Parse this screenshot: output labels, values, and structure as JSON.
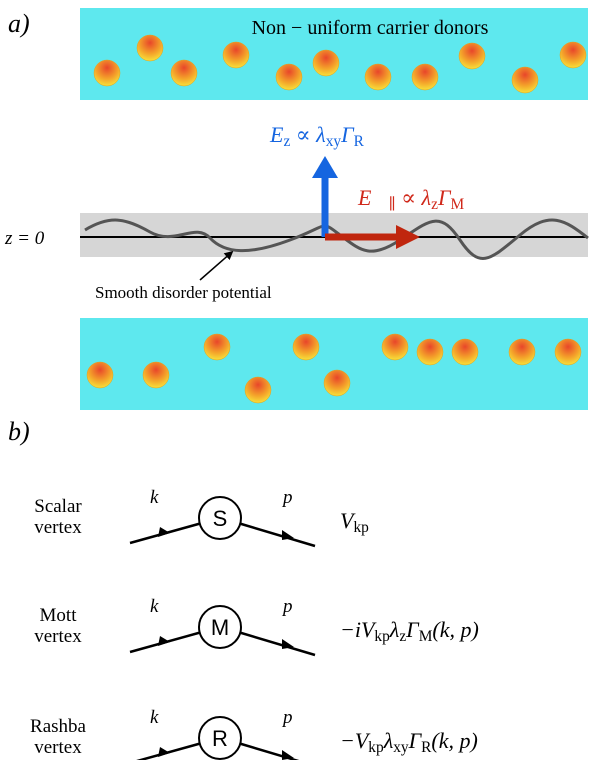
{
  "panel_a": {
    "label": "a)",
    "donors_label": "Non − uniform carrier donors",
    "ez_label": [
      "E",
      "z",
      " ∝ λ",
      "xy",
      "Γ",
      "R"
    ],
    "epar_label": [
      "E⃗",
      "∥",
      " ∝ λ",
      "z",
      "Γ",
      "M"
    ],
    "z_label": "z = 0",
    "disorder_label": "Smooth disorder potential"
  },
  "panel_b": {
    "label": "b)",
    "vertices": [
      {
        "name": [
          "Scalar",
          "vertex"
        ],
        "symbol": "S",
        "k": "k",
        "p": "p",
        "formula": [
          "V",
          "kp"
        ]
      },
      {
        "name": [
          "Mott",
          "vertex"
        ],
        "symbol": "M",
        "k": "k",
        "p": "p",
        "formula": [
          "−iV",
          "kp",
          "λ",
          "z",
          "Γ",
          "M",
          "(k, p)"
        ]
      },
      {
        "name": [
          "Rashba",
          "vertex"
        ],
        "symbol": "R",
        "k": "k",
        "p": "p",
        "formula": [
          "−V",
          "kp",
          "λ",
          "xy",
          "Γ",
          "R",
          "(k, p)"
        ]
      }
    ]
  }
}
